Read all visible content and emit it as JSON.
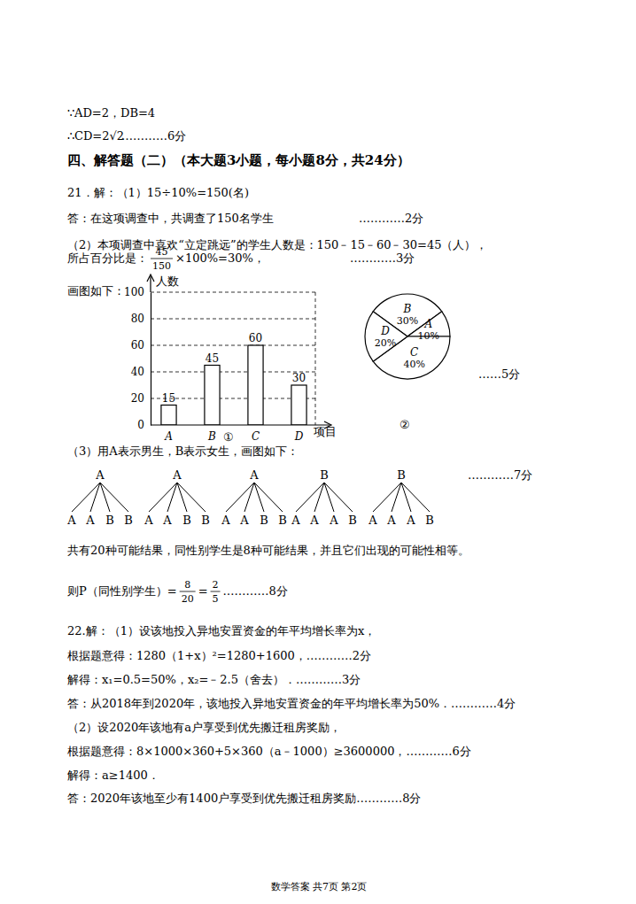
{
  "lines": [
    [
      "∵AD=2，DB=4"
    ],
    [
      "∴CD=2√2",
      "…………6分"
    ],
    [
      "四、解答题（二）（本大题3小题，每小题8分，共24分）"
    ],
    [
      "21．解：（1）15÷10%=150(名)"
    ],
    [
      "答：在这项调查中，共调查了150名学生",
      "…………2分"
    ],
    [
      "（2）本项调查中喜欢“立定跳远”的学生人数是：150﹣15﹣60﹣30=45（人），"
    ],
    [
      "所占百分比是：",
      {
        "num": "45",
        "den": "150"
      },
      "×100%=30%，",
      "…………3分"
    ],
    [
      "画图如下："
    ],
    [
      "……5分"
    ],
    [
      "（3）用A表示男生，B表示女生，画图如下："
    ],
    [
      "…………7分"
    ],
    [
      "共有20种可能结果，同性别学生是8种可能结果，并且它们出现的可能性相等。"
    ],
    [
      "则P（同性别学生）=",
      {
        "num": "8",
        "den": "20"
      },
      "=",
      {
        "num": "2",
        "den": "5"
      },
      "…………8分"
    ],
    [
      "22.解：（1）设该地投入异地安置资金的年平均增长率为x，"
    ],
    [
      "根据题意得：1280（1+x）²=1280+1600，…………2分"
    ],
    [
      "解得：x₁=0.5=50%，x₂=﹣2.5（舍去）．…………3分"
    ],
    [
      "答：从2018年到2020年，该地投入异地安置资金的年平均增长率为50%．…………4分"
    ],
    [
      "（2）设2020年该地有a户享受到优先搬迁租房奖励，"
    ],
    [
      "根据题意得：8×1000×360+5×360（a﹣1000）≥3600000，…………6分"
    ],
    [
      "解得：a≥1400．"
    ],
    [
      "答：2020年该地至少有1400户享受到优先搬迁租房奖励…………8分"
    ],
    [
      "数学答案 共7页 第2页"
    ]
  ],
  "chart_data": [
    {
      "type": "bar",
      "title": "①",
      "y_label": "人数",
      "x_label": "项目",
      "categories": [
        "A",
        "B",
        "C",
        "D"
      ],
      "values": [
        15,
        45,
        60,
        30
      ],
      "color": "#ffffff",
      "ylim": [
        0,
        100
      ],
      "yticks": [
        0,
        20,
        40,
        60,
        80,
        100
      ],
      "grid": true,
      "data_labels": true
    },
    {
      "type": "pie",
      "title": "②",
      "categories": [
        "B",
        "A",
        "C",
        "D"
      ],
      "values": [
        30,
        10,
        40,
        20
      ],
      "value_labels": [
        "30%",
        "10%",
        "40%",
        "20%"
      ],
      "data_labels": true,
      "color": "#ffffff"
    }
  ],
  "trees": [
    {
      "root": "A",
      "leaves": [
        "A",
        "A",
        "B",
        "B"
      ]
    },
    {
      "root": "A",
      "leaves": [
        "A",
        "A",
        "B",
        "B"
      ]
    },
    {
      "root": "A",
      "leaves": [
        "A",
        "A",
        "B",
        "B"
      ]
    },
    {
      "root": "B",
      "leaves": [
        "A",
        "A",
        "A",
        "B"
      ]
    },
    {
      "root": "B",
      "leaves": [
        "A",
        "A",
        "A",
        "B"
      ]
    }
  ]
}
